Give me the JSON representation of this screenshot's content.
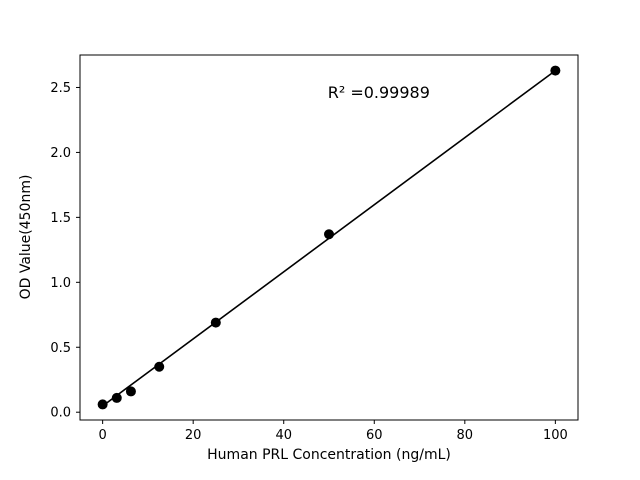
{
  "chart_data": {
    "type": "scatter",
    "title": "",
    "xlabel": "Human PRL Concentration (ng/mL)",
    "ylabel": "OD Value(450nm)",
    "x": [
      0,
      3.125,
      6.25,
      12.5,
      25,
      50,
      100
    ],
    "y": [
      0.06,
      0.11,
      0.16,
      0.35,
      0.69,
      1.37,
      2.63
    ],
    "fit_line": {
      "x": [
        0,
        100
      ],
      "y": [
        0.048,
        2.63
      ]
    },
    "annotation": {
      "text": "R² =0.99989",
      "x": 61,
      "y": 2.42
    },
    "xlim": [
      -5,
      105
    ],
    "ylim": [
      -0.06,
      2.75
    ],
    "x_ticks": [
      "0",
      "20",
      "40",
      "60",
      "80",
      "100"
    ],
    "y_ticks": [
      "0.0",
      "0.5",
      "1.0",
      "1.5",
      "2.0",
      "2.5"
    ],
    "grid": false,
    "legend": "none",
    "marker_color": "#000000",
    "line_color": "#000000",
    "background_color": "#ffffff"
  }
}
